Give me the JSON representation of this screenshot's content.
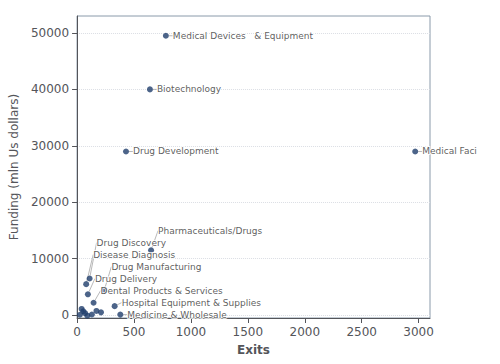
{
  "chart_data": {
    "type": "scatter",
    "xlabel": "Exits",
    "ylabel": "Funding (mln Us dollars)",
    "x": [
      780,
      640,
      430,
      2970,
      650,
      110,
      80,
      240,
      95,
      145,
      330,
      380,
      40,
      55,
      70,
      170,
      210,
      25,
      130,
      90
    ],
    "values": [
      49500,
      40000,
      29000,
      29000,
      11500,
      6500,
      5500,
      4500,
      3700,
      2200,
      1600,
      100,
      1100,
      700,
      350,
      750,
      500,
      80,
      120,
      -80
    ],
    "labels": [
      "Medical Devices   & Equipment",
      "Biotechnology",
      "Drug Development",
      "Medical Faci",
      "Pharmaceuticals/Drugs",
      "Drug Discovery",
      "Disease Diagnosis",
      "Drug Manufacturing",
      "Drug Delivery",
      "Dental Products & Services",
      "Hospital Equipment & Supplies",
      "Medicine & Wholesale",
      null,
      null,
      null,
      null,
      null,
      null,
      null,
      null
    ],
    "xlim": [
      0,
      3100
    ],
    "ylim": [
      -500,
      53000
    ],
    "xticks": [
      0,
      500,
      1000,
      1500,
      2000,
      2500,
      3000
    ],
    "yticks": [
      0,
      10000,
      20000,
      30000,
      40000,
      50000
    ],
    "grid": true,
    "color": "#1f3d6b"
  }
}
